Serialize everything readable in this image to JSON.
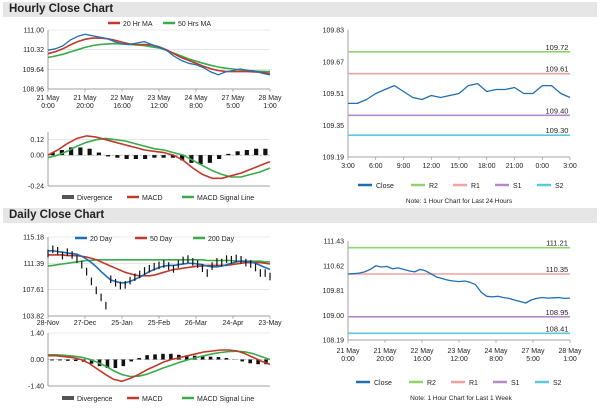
{
  "sections": {
    "hourly": "Hourly Close Chart",
    "daily": "Daily Close Chart"
  },
  "colors": {
    "close": "#1f6fb4",
    "ma20": "#c0392b",
    "ma50": "#3aaa4a",
    "r2": "#8fd36a",
    "r1": "#f2a0a0",
    "s1": "#b48bc7",
    "s2": "#5bc9d9",
    "macd": "#c0392b",
    "signal": "#3aaa4a",
    "divergence": "#555555",
    "bars": "#111111",
    "grid": "#d8d8d8",
    "axis": "#888888"
  },
  "chart_data": [
    {
      "id": "hourly-price",
      "type": "line",
      "title": "",
      "x_tick_labels": [
        [
          "21 May",
          "0:00"
        ],
        [
          "21 May",
          "20:00"
        ],
        [
          "22 May",
          "16:00"
        ],
        [
          "23 May",
          "12:00"
        ],
        [
          "24 May",
          "8:00"
        ],
        [
          "27 May",
          "5:00"
        ],
        [
          "28 May",
          "1:00"
        ]
      ],
      "y_ticks": [
        "111.00",
        "110.32",
        "109.64",
        "108.96"
      ],
      "ylim": [
        108.96,
        111.0
      ],
      "legend": [
        "20 Hr MA",
        "50 Hrs MA"
      ],
      "series": [
        {
          "name": "Close",
          "values": [
            110.3,
            110.35,
            110.45,
            110.65,
            110.78,
            110.85,
            110.8,
            110.75,
            110.7,
            110.6,
            110.52,
            110.5,
            110.55,
            110.6,
            110.5,
            110.4,
            110.3,
            110.1,
            109.95,
            109.85,
            109.8,
            109.7,
            109.55,
            109.45,
            109.55,
            109.6,
            109.65,
            109.6,
            109.58,
            109.5,
            109.45
          ]
        },
        {
          "name": "20 Hr MA",
          "values": [
            110.18,
            110.25,
            110.35,
            110.48,
            110.6,
            110.68,
            110.72,
            110.72,
            110.7,
            110.65,
            110.58,
            110.52,
            110.5,
            110.5,
            110.48,
            110.42,
            110.32,
            110.18,
            110.05,
            109.95,
            109.85,
            109.75,
            109.66,
            109.6,
            109.57,
            109.56,
            109.56,
            109.56,
            109.55,
            109.53,
            109.5
          ]
        },
        {
          "name": "50 Hrs MA",
          "values": [
            110.05,
            110.1,
            110.16,
            110.24,
            110.32,
            110.4,
            110.46,
            110.5,
            110.52,
            110.53,
            110.52,
            110.5,
            110.48,
            110.46,
            110.42,
            110.38,
            110.3,
            110.2,
            110.1,
            110.0,
            109.92,
            109.85,
            109.78,
            109.72,
            109.68,
            109.65,
            109.62,
            109.6,
            109.58,
            109.57,
            109.56
          ]
        }
      ]
    },
    {
      "id": "hourly-macd",
      "type": "line",
      "title": "",
      "x_tick_labels": [
        [
          "21 May",
          "0:00"
        ],
        [
          "21 May",
          "20:00"
        ],
        [
          "22 May",
          "16:00"
        ],
        [
          "23 May",
          "12:00"
        ],
        [
          "24 May",
          "8:00"
        ],
        [
          "27 May",
          "5:00"
        ],
        [
          "28 May",
          "1:00"
        ]
      ],
      "y_ticks": [
        "0.12",
        "0.00",
        "-0.24"
      ],
      "ylim": [
        -0.24,
        0.18
      ],
      "legend": [
        "Divergence",
        "MACD",
        "MACD Signal Line"
      ],
      "series": [
        {
          "name": "MACD",
          "values": [
            0.0,
            0.04,
            0.09,
            0.13,
            0.15,
            0.14,
            0.12,
            0.1,
            0.08,
            0.06,
            0.04,
            0.03,
            0.02,
            0.0,
            -0.04,
            -0.1,
            -0.15,
            -0.18,
            -0.18,
            -0.16,
            -0.14,
            -0.11,
            -0.08,
            -0.05
          ]
        },
        {
          "name": "MACD Signal Line",
          "values": [
            -0.02,
            0.0,
            0.03,
            0.07,
            0.1,
            0.12,
            0.13,
            0.12,
            0.11,
            0.09,
            0.07,
            0.05,
            0.04,
            0.02,
            0.0,
            -0.04,
            -0.08,
            -0.12,
            -0.15,
            -0.17,
            -0.17,
            -0.15,
            -0.13,
            -0.1
          ]
        },
        {
          "name": "Divergence",
          "values": [
            0.02,
            0.04,
            0.06,
            0.06,
            0.05,
            0.02,
            -0.01,
            -0.02,
            -0.03,
            -0.03,
            -0.03,
            -0.02,
            -0.02,
            -0.02,
            -0.04,
            -0.06,
            -0.07,
            -0.06,
            -0.03,
            0.01,
            0.03,
            0.04,
            0.05,
            0.05
          ]
        }
      ]
    },
    {
      "id": "hourly-pivot",
      "type": "line",
      "title": "",
      "x_tick_labels": [
        "3:00",
        "6:00",
        "9:00",
        "12:00",
        "15:00",
        "18:00",
        "21:00",
        "0:00",
        "3:00"
      ],
      "y_ticks": [
        "109.83",
        "109.67",
        "109.51",
        "109.35",
        "109.19"
      ],
      "ylim": [
        109.19,
        109.83
      ],
      "levels": [
        {
          "name": "R2",
          "value": 109.72,
          "label": "109.72"
        },
        {
          "name": "R1",
          "value": 109.61,
          "label": "109.61"
        },
        {
          "name": "S1",
          "value": 109.4,
          "label": "109.40"
        },
        {
          "name": "S2",
          "value": 109.3,
          "label": "109.30"
        }
      ],
      "series": [
        {
          "name": "Close",
          "values": [
            109.46,
            109.46,
            109.48,
            109.51,
            109.53,
            109.55,
            109.52,
            109.49,
            109.48,
            109.5,
            109.49,
            109.5,
            109.51,
            109.55,
            109.56,
            109.52,
            109.53,
            109.53,
            109.54,
            109.51,
            109.51,
            109.55,
            109.55,
            109.51,
            109.49
          ]
        }
      ],
      "legend": [
        "Close",
        "R2",
        "R1",
        "S1",
        "S2"
      ],
      "note": "Note: 1 Hour Chart for Last 24 Hours"
    },
    {
      "id": "daily-price",
      "type": "line",
      "title": "",
      "x_tick_labels": [
        "28-Nov",
        "27-Dec",
        "25-Jan",
        "25-Feb",
        "26-Mar",
        "24-Apr",
        "23-May"
      ],
      "y_ticks": [
        "115.18",
        "111.39",
        "107.61",
        "103.82"
      ],
      "ylim": [
        103.82,
        115.18
      ],
      "legend": [
        "20 Day",
        "50 Day",
        "200 Day"
      ],
      "series": [
        {
          "name": "Close",
          "values": [
            112.8,
            113.4,
            113.2,
            112.5,
            113.0,
            112.6,
            112.0,
            111.2,
            110.2,
            108.8,
            107.5,
            106.5,
            105.3,
            109.1,
            108.6,
            108.2,
            108.3,
            108.9,
            109.4,
            109.8,
            110.3,
            110.6,
            110.9,
            111.1,
            111.3,
            111.0,
            110.6,
            111.3,
            111.8,
            112.0,
            111.6,
            111.3,
            110.7,
            110.0,
            111.0,
            111.6,
            111.5,
            112.0,
            111.9,
            112.1,
            111.9,
            111.5,
            111.3,
            110.8,
            110.0,
            110.0,
            109.5
          ]
        },
        {
          "name": "20 Day",
          "values": [
            113.2,
            113.2,
            113.1,
            113.0,
            112.9,
            112.8,
            112.7,
            112.4,
            112.0,
            111.5,
            110.9,
            110.2,
            109.6,
            109.0,
            108.8,
            108.6,
            108.6,
            108.8,
            109.1,
            109.4,
            109.8,
            110.2,
            110.5,
            110.8,
            111.0,
            111.1,
            111.1,
            111.2,
            111.3,
            111.4,
            111.4,
            111.3,
            111.2,
            111.0,
            110.9,
            110.9,
            111.0,
            111.2,
            111.4,
            111.6,
            111.7,
            111.7,
            111.6,
            111.4,
            111.1,
            110.8,
            110.5
          ]
        },
        {
          "name": "50 Day",
          "values": [
            112.6,
            112.6,
            112.6,
            112.6,
            112.5,
            112.5,
            112.5,
            112.4,
            112.3,
            112.1,
            111.9,
            111.6,
            111.3,
            111.0,
            110.7,
            110.4,
            110.1,
            109.9,
            109.7,
            109.6,
            109.6,
            109.6,
            109.7,
            109.9,
            110.1,
            110.3,
            110.5,
            110.6,
            110.7,
            110.8,
            110.9,
            111.0,
            111.0,
            111.1,
            111.1,
            111.1,
            111.1,
            111.1,
            111.2,
            111.3,
            111.4,
            111.5,
            111.5,
            111.5,
            111.5,
            111.4,
            111.3
          ]
        },
        {
          "name": "200 Day",
          "values": [
            111.0,
            111.1,
            111.2,
            111.3,
            111.4,
            111.5,
            111.6,
            111.7,
            111.8,
            111.8,
            111.9,
            111.9,
            111.9,
            111.9,
            111.9,
            111.9,
            111.9,
            111.9,
            111.9,
            111.9,
            111.9,
            111.9,
            111.9,
            111.9,
            111.9,
            111.9,
            111.9,
            111.9,
            111.9,
            111.9,
            111.9,
            111.9,
            111.9,
            111.8,
            111.8,
            111.8,
            111.8,
            111.8,
            111.8,
            111.7,
            111.7,
            111.7,
            111.7,
            111.7,
            111.7,
            111.6,
            111.6
          ]
        }
      ]
    },
    {
      "id": "daily-macd",
      "type": "line",
      "title": "",
      "x_tick_labels": [
        "28-Nov",
        "27-Dec",
        "25-Jan",
        "25-Feb",
        "26-Mar",
        "24-Apr",
        "23-May"
      ],
      "y_ticks": [
        "1.40",
        "0.00",
        "-1.40"
      ],
      "ylim": [
        -1.4,
        1.4
      ],
      "legend": [
        "Divergence",
        "MACD",
        "MACD Signal Line"
      ],
      "series": [
        {
          "name": "MACD",
          "values": [
            0.2,
            0.2,
            0.15,
            0.1,
            0.0,
            -0.2,
            -0.5,
            -0.8,
            -1.05,
            -1.15,
            -1.0,
            -0.8,
            -0.55,
            -0.35,
            -0.15,
            0.0,
            0.1,
            0.2,
            0.3,
            0.4,
            0.45,
            0.5,
            0.5,
            0.45,
            0.3,
            0.1,
            -0.1,
            -0.25
          ]
        },
        {
          "name": "MACD Signal Line",
          "values": [
            0.25,
            0.25,
            0.22,
            0.18,
            0.12,
            0.02,
            -0.15,
            -0.35,
            -0.6,
            -0.8,
            -0.9,
            -0.88,
            -0.78,
            -0.62,
            -0.45,
            -0.3,
            -0.15,
            -0.02,
            0.1,
            0.2,
            0.3,
            0.37,
            0.42,
            0.44,
            0.4,
            0.3,
            0.15,
            0.0
          ]
        },
        {
          "name": "Divergence",
          "values": [
            -0.05,
            -0.05,
            -0.07,
            -0.08,
            -0.12,
            -0.22,
            -0.35,
            -0.45,
            -0.45,
            -0.35,
            -0.1,
            0.08,
            0.23,
            0.27,
            0.3,
            0.3,
            0.25,
            0.22,
            0.2,
            0.2,
            0.15,
            0.13,
            0.08,
            0.01,
            -0.1,
            -0.2,
            -0.25,
            -0.25
          ]
        }
      ]
    },
    {
      "id": "daily-pivot",
      "type": "line",
      "title": "",
      "x_tick_labels": [
        [
          "21 May",
          "0:00"
        ],
        [
          "21 May",
          "20:00"
        ],
        [
          "22 May",
          "16:00"
        ],
        [
          "23 May",
          "12:00"
        ],
        [
          "24 May",
          "8:00"
        ],
        [
          "27 May",
          "5:00"
        ],
        [
          "28 May",
          "1:00"
        ]
      ],
      "y_ticks": [
        "111.43",
        "110.62",
        "109.81",
        "109.00",
        "108.19"
      ],
      "ylim": [
        108.19,
        111.43
      ],
      "levels": [
        {
          "name": "R2",
          "value": 111.21,
          "label": "111.21"
        },
        {
          "name": "R1",
          "value": 110.35,
          "label": "110.35"
        },
        {
          "name": "S1",
          "value": 108.95,
          "label": "108.95"
        },
        {
          "name": "S2",
          "value": 108.41,
          "label": "108.41"
        }
      ],
      "series": [
        {
          "name": "Close",
          "values": [
            110.35,
            110.36,
            110.38,
            110.42,
            110.5,
            110.62,
            110.58,
            110.6,
            110.52,
            110.55,
            110.5,
            110.45,
            110.42,
            110.5,
            110.45,
            110.35,
            110.25,
            110.2,
            110.15,
            110.12,
            110.1,
            110.12,
            110.08,
            110.0,
            109.75,
            109.62,
            109.6,
            109.62,
            109.58,
            109.55,
            109.5,
            109.45,
            109.4,
            109.5,
            109.55,
            109.58,
            109.56,
            109.57,
            109.58,
            109.55,
            109.56
          ]
        }
      ],
      "legend": [
        "Close",
        "R2",
        "R1",
        "S1",
        "S2"
      ],
      "note": "Note: 1 Hour Chart for Last 1 Week"
    }
  ]
}
